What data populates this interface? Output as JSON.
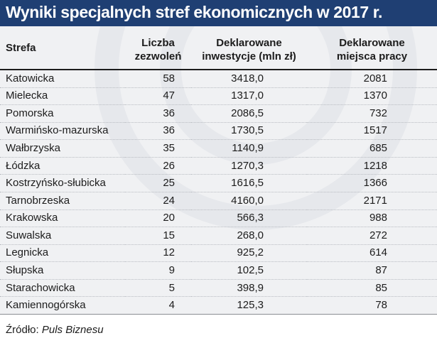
{
  "title": "Wyniki specjalnych stref ekonomicznych w 2017 r.",
  "colors": {
    "title_bar": "#1f3f73",
    "panel": "#f0f1f3"
  },
  "chart_data": {
    "type": "table",
    "columns": [
      {
        "label": "Strefa"
      },
      {
        "label_line1": "Liczba",
        "label_line2": "zezwoleń"
      },
      {
        "label_line1": "Deklarowane",
        "label_line2": "inwestycje (mln zł)"
      },
      {
        "label_line1": "Deklarowane",
        "label_line2": "miejsca pracy"
      }
    ],
    "rows": [
      [
        "Katowicka",
        "58",
        "3418,0",
        "2081"
      ],
      [
        "Mielecka",
        "47",
        "1317,0",
        "1370"
      ],
      [
        "Pomorska",
        "36",
        "2086,5",
        "732"
      ],
      [
        "Warmińsko-mazurska",
        "36",
        "1730,5",
        "1517"
      ],
      [
        "Wałbrzyska",
        "35",
        "1140,9",
        "685"
      ],
      [
        "Łódzka",
        "26",
        "1270,3",
        "1218"
      ],
      [
        "Kostrzyńsko-słubicka",
        "25",
        "1616,5",
        "1366"
      ],
      [
        "Tarnobrzeska",
        "24",
        "4160,0",
        "2171"
      ],
      [
        "Krakowska",
        "20",
        "566,3",
        "988"
      ],
      [
        "Suwalska",
        "15",
        "268,0",
        "272"
      ],
      [
        "Legnicka",
        "12",
        "925,2",
        "614"
      ],
      [
        "Słupska",
        "9",
        "102,5",
        "87"
      ],
      [
        "Starachowicka",
        "5",
        "398,9",
        "85"
      ],
      [
        "Kamiennogórska",
        "4",
        "125,3",
        "78"
      ]
    ]
  },
  "source": {
    "prefix": "Źródło:",
    "name": "Puls Biznesu"
  }
}
